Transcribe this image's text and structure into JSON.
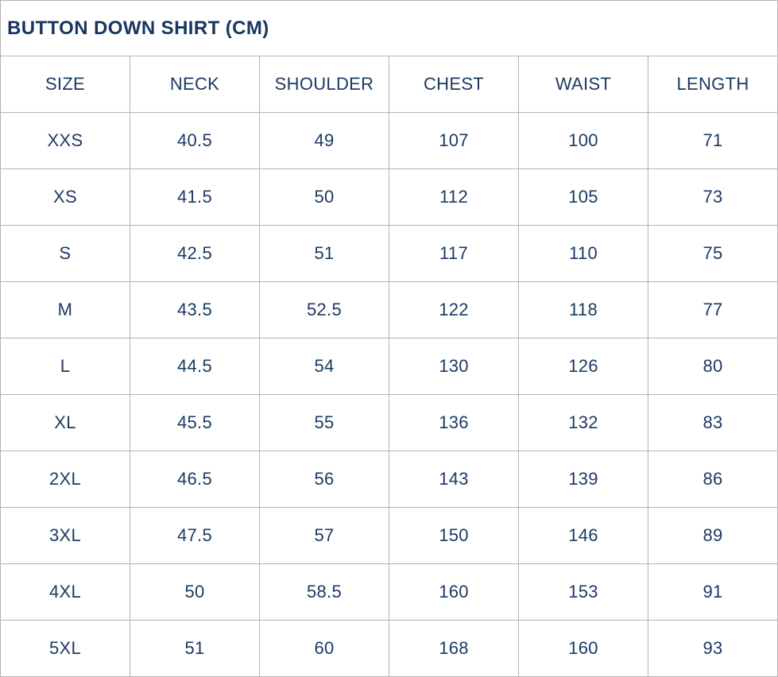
{
  "size_chart": {
    "title": "BUTTON DOWN SHIRT (CM)",
    "unit": "CM",
    "columns": [
      "SIZE",
      "NECK",
      "SHOULDER",
      "CHEST",
      "WAIST",
      "LENGTH"
    ],
    "rows": [
      [
        "XXS",
        "40.5",
        "49",
        "107",
        "100",
        "71"
      ],
      [
        "XS",
        "41.5",
        "50",
        "112",
        "105",
        "73"
      ],
      [
        "S",
        "42.5",
        "51",
        "117",
        "110",
        "75"
      ],
      [
        "M",
        "43.5",
        "52.5",
        "122",
        "118",
        "77"
      ],
      [
        "L",
        "44.5",
        "54",
        "130",
        "126",
        "80"
      ],
      [
        "XL",
        "45.5",
        "55",
        "136",
        "132",
        "83"
      ],
      [
        "2XL",
        "46.5",
        "56",
        "143",
        "139",
        "86"
      ],
      [
        "3XL",
        "47.5",
        "57",
        "150",
        "146",
        "89"
      ],
      [
        "4XL",
        "50",
        "58.5",
        "160",
        "153",
        "91"
      ],
      [
        "5XL",
        "51",
        "60",
        "168",
        "160",
        "93"
      ]
    ],
    "colors": {
      "text": "#1c3a63",
      "title_text": "#17355f",
      "grid_border": "#b3b3b3",
      "background": "#ffffff"
    }
  }
}
